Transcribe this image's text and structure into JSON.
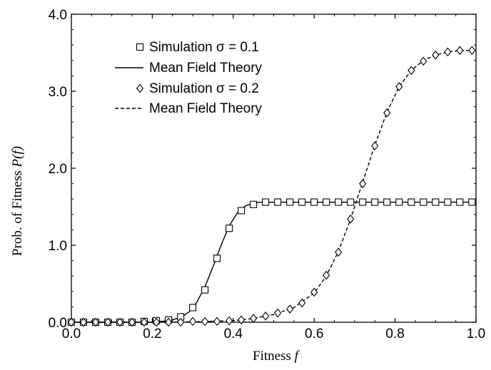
{
  "chart_data": {
    "type": "line",
    "xlabel": "Fitness",
    "xlabel_var": "f",
    "ylabel": "Prob. of Fitness",
    "ylabel_var": "P(f)",
    "xlim": [
      0.0,
      1.0
    ],
    "ylim": [
      0.0,
      4.0
    ],
    "xticks": [
      "0.0",
      "0.2",
      "0.4",
      "0.6",
      "0.8",
      "1.0"
    ],
    "yticks": [
      "0.0",
      "1.0",
      "2.0",
      "3.0",
      "4.0"
    ],
    "grid": false,
    "legend_position": "top-center",
    "series": [
      {
        "name": "Simulation σ = 0.1",
        "style": "markers",
        "marker": "square",
        "x": [
          0.0,
          0.03,
          0.06,
          0.09,
          0.12,
          0.15,
          0.18,
          0.21,
          0.24,
          0.27,
          0.3,
          0.33,
          0.36,
          0.39,
          0.42,
          0.45,
          0.48,
          0.51,
          0.54,
          0.57,
          0.6,
          0.63,
          0.66,
          0.69,
          0.72,
          0.75,
          0.78,
          0.81,
          0.84,
          0.87,
          0.9,
          0.93,
          0.96,
          0.99
        ],
        "y": [
          0.0,
          0.0,
          0.0,
          0.0,
          0.0,
          0.0,
          0.01,
          0.02,
          0.03,
          0.07,
          0.19,
          0.42,
          0.83,
          1.22,
          1.45,
          1.53,
          1.56,
          1.56,
          1.56,
          1.56,
          1.56,
          1.56,
          1.56,
          1.56,
          1.56,
          1.56,
          1.56,
          1.56,
          1.56,
          1.56,
          1.56,
          1.56,
          1.56,
          1.56
        ]
      },
      {
        "name": "Mean Field Theory",
        "style": "solid",
        "x": [
          0.0,
          0.2,
          0.24,
          0.27,
          0.29,
          0.31,
          0.33,
          0.35,
          0.37,
          0.39,
          0.41,
          0.43,
          0.45,
          0.47,
          0.5,
          1.0
        ],
        "y": [
          0.0,
          0.0,
          0.02,
          0.06,
          0.13,
          0.26,
          0.46,
          0.72,
          1.0,
          1.25,
          1.42,
          1.51,
          1.55,
          1.56,
          1.56,
          1.56
        ]
      },
      {
        "name": "Simulation σ = 0.2",
        "style": "markers",
        "marker": "diamond",
        "x": [
          0.0,
          0.03,
          0.06,
          0.09,
          0.12,
          0.15,
          0.18,
          0.21,
          0.24,
          0.27,
          0.3,
          0.33,
          0.36,
          0.39,
          0.42,
          0.45,
          0.48,
          0.51,
          0.54,
          0.57,
          0.6,
          0.63,
          0.66,
          0.69,
          0.72,
          0.75,
          0.78,
          0.81,
          0.84,
          0.87,
          0.9,
          0.93,
          0.96,
          0.99
        ],
        "y": [
          0.0,
          0.0,
          0.0,
          0.0,
          0.0,
          0.0,
          0.0,
          0.0,
          0.0,
          0.0,
          0.01,
          0.01,
          0.01,
          0.02,
          0.03,
          0.05,
          0.08,
          0.12,
          0.17,
          0.25,
          0.39,
          0.61,
          0.91,
          1.34,
          1.8,
          2.29,
          2.72,
          3.06,
          3.27,
          3.39,
          3.47,
          3.51,
          3.53,
          3.53
        ]
      },
      {
        "name": "Mean Field Theory",
        "style": "dashed",
        "x": [
          0.0,
          0.2,
          0.3,
          0.4,
          0.45,
          0.5,
          0.55,
          0.6,
          0.63,
          0.66,
          0.69,
          0.72,
          0.75,
          0.78,
          0.81,
          0.84,
          0.87,
          0.9,
          0.93,
          0.96,
          1.0
        ],
        "y": [
          0.0,
          0.0,
          0.005,
          0.02,
          0.05,
          0.1,
          0.19,
          0.38,
          0.6,
          0.92,
          1.34,
          1.82,
          2.3,
          2.73,
          3.06,
          3.27,
          3.4,
          3.47,
          3.51,
          3.53,
          3.53
        ]
      }
    ]
  }
}
